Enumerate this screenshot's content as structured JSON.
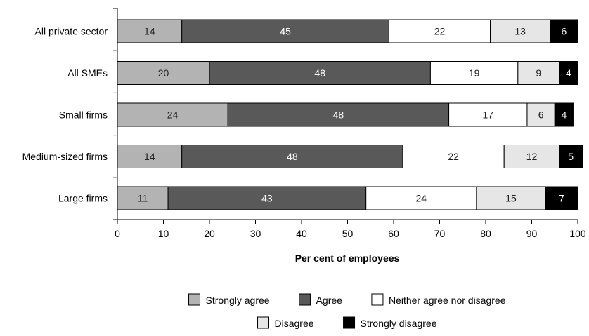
{
  "chart_data": {
    "type": "bar",
    "orientation": "horizontal",
    "stacked": true,
    "categories": [
      "All private sector",
      "All SMEs",
      "Small firms",
      "Medium-sized firms",
      "Large firms"
    ],
    "series": [
      {
        "name": "Strongly agree",
        "color": "#b3b3b3",
        "label_color": "#222222",
        "values": [
          14,
          20,
          24,
          14,
          11
        ]
      },
      {
        "name": "Agree",
        "color": "#595959",
        "label_color": "#ffffff",
        "values": [
          45,
          48,
          48,
          48,
          43
        ]
      },
      {
        "name": "Neither agree nor disagree",
        "color": "#ffffff",
        "label_color": "#222222",
        "values": [
          22,
          19,
          17,
          22,
          24
        ]
      },
      {
        "name": "Disagree",
        "color": "#e6e6e6",
        "label_color": "#222222",
        "values": [
          13,
          9,
          6,
          12,
          15
        ]
      },
      {
        "name": "Strongly disagree",
        "color": "#000000",
        "label_color": "#ffffff",
        "values": [
          6,
          4,
          4,
          5,
          7
        ]
      }
    ],
    "xlim": [
      0,
      100
    ],
    "xticks": [
      0,
      10,
      20,
      30,
      40,
      50,
      60,
      70,
      80,
      90,
      100
    ],
    "xlabel": "Per cent of employees",
    "ylabel": "",
    "title": "",
    "grid": false,
    "legend_position": "bottom"
  }
}
